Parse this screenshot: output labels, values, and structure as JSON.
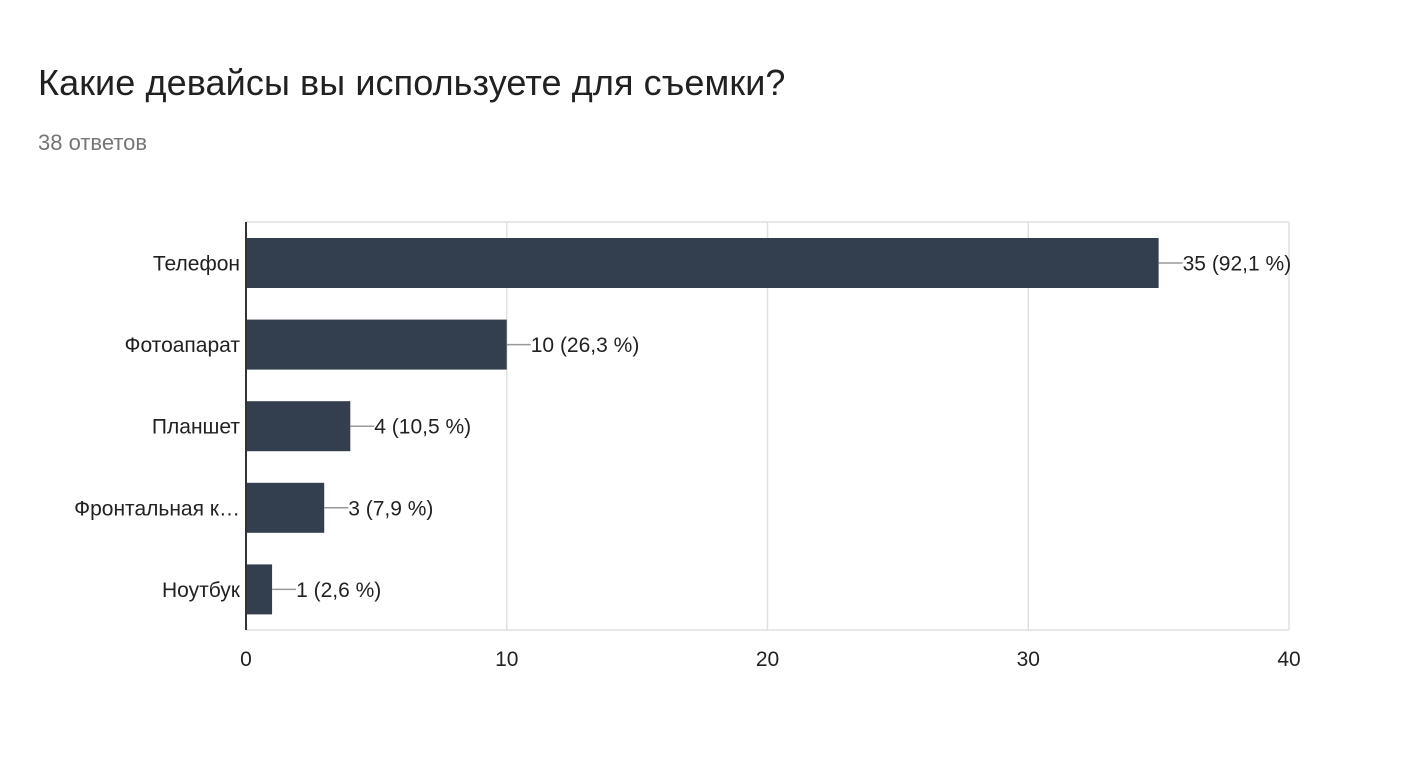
{
  "header": {
    "title": "Какие девайсы вы используете для съемки?",
    "response_count": "38 ответов"
  },
  "colors": {
    "bar": "#333f4f",
    "grid": "#e0e0e0",
    "axis": "#333333",
    "label": "#222222",
    "leader": "#999999"
  },
  "chart_data": {
    "type": "bar",
    "orientation": "horizontal",
    "categories": [
      "Телефон",
      "Фотоапарат",
      "Планшет",
      "Фронтальная к…",
      "Ноутбук"
    ],
    "values": [
      35,
      10,
      4,
      3,
      1
    ],
    "data_labels": [
      "35 (92,1 %)",
      "10 (26,3 %)",
      "4 (10,5 %)",
      "3 (7,9 %)",
      "1 (2,6 %)"
    ],
    "xlim": [
      0,
      40
    ],
    "xticks": [
      0,
      10,
      20,
      30,
      40
    ],
    "grid": true,
    "legend": "none"
  }
}
